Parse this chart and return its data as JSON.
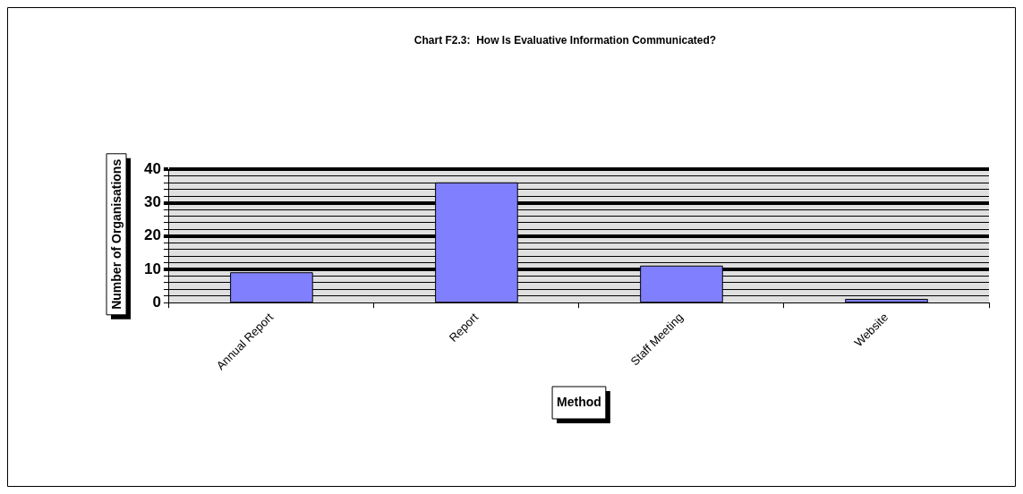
{
  "chart_data": {
    "type": "bar",
    "title": "Chart F2.3:  How Is Evaluative Information Communicated?",
    "xlabel": "Method",
    "ylabel": "Number of Organisations",
    "categories": [
      "Annual Report",
      "Report",
      "Staff Meeting",
      "Website"
    ],
    "values": [
      9,
      36,
      11,
      1
    ],
    "color": "#8080ff",
    "ylim": [
      0,
      40
    ],
    "yticks": [
      0,
      {
        "value": 2,
        "label": null
      },
      {
        "value": 4,
        "label": null
      },
      {
        "value": 6,
        "label": null
      },
      {
        "value": 8,
        "label": null
      },
      10,
      {
        "value": 12,
        "label": null
      },
      {
        "value": 14,
        "label": null
      },
      {
        "value": 16,
        "label": null
      },
      {
        "value": 18,
        "label": null
      },
      20,
      {
        "value": 22,
        "label": null
      },
      {
        "value": 24,
        "label": null
      },
      {
        "value": 26,
        "label": null
      },
      {
        "value": 28,
        "label": null
      },
      30,
      {
        "value": 32,
        "label": null
      },
      {
        "value": 34,
        "label": null
      },
      {
        "value": 36,
        "label": null
      },
      {
        "value": 38,
        "label": null
      },
      40
    ],
    "grid": "y",
    "legend": false
  }
}
